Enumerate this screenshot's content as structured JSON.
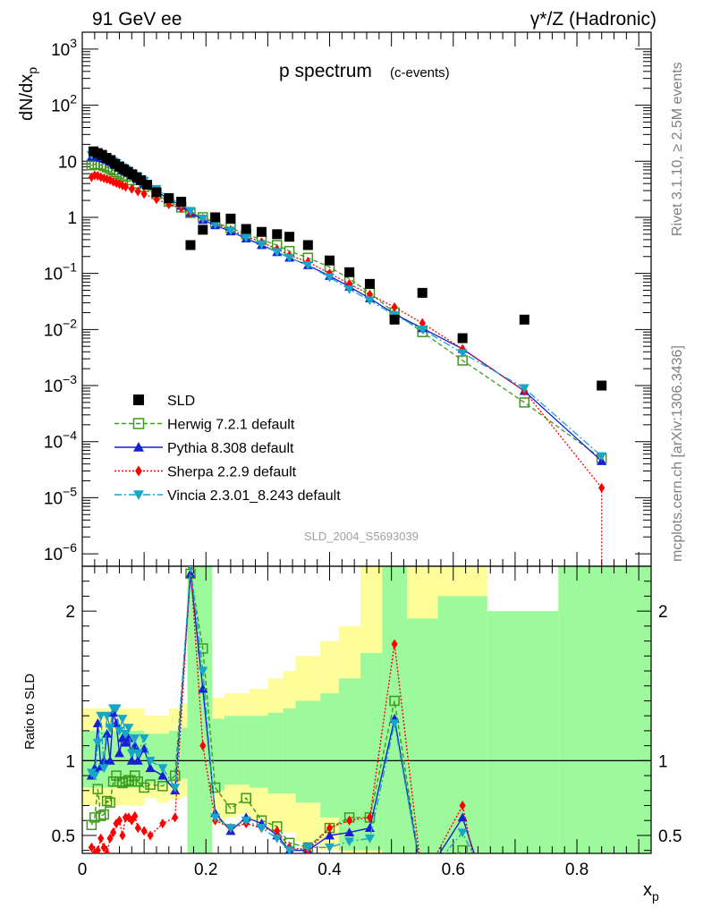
{
  "header": {
    "left": "91 GeV ee",
    "right": "γ*/Z (Hadronic)"
  },
  "side": {
    "rivet": "Rivet 3.1.10, ≥ 2.5M events",
    "mcplots": "mcplots.cern.ch [arXiv:1306.3436]"
  },
  "chart_data": [
    {
      "type": "scatter",
      "title": "p spectrum",
      "subtitle": "(c-events)",
      "watermark": "SLD_2004_S5693039",
      "ylabel": "dN/dx_p",
      "yscale": "log",
      "ylim": [
        6e-07,
        2000
      ],
      "xlim": [
        0,
        0.92
      ],
      "y_ticks": [
        "10^-6",
        "10^-5",
        "10^-4",
        "10^-3",
        "10^-2",
        "10^-1",
        "1",
        "10",
        "10^2",
        "10^3"
      ],
      "legend_position": "bottom-left",
      "series": [
        {
          "name": "SLD",
          "color": "#000000",
          "marker": "square",
          "line": "none",
          "x": [
            0.018,
            0.025,
            0.032,
            0.039,
            0.046,
            0.053,
            0.06,
            0.067,
            0.074,
            0.081,
            0.088,
            0.095,
            0.105,
            0.12,
            0.14,
            0.16,
            0.175,
            0.195,
            0.215,
            0.24,
            0.265,
            0.29,
            0.315,
            0.335,
            0.365,
            0.4,
            0.432,
            0.465,
            0.505,
            0.55,
            0.615,
            0.715,
            0.84
          ],
          "y": [
            15,
            14,
            13,
            11.5,
            10.5,
            9,
            8,
            7.2,
            6.5,
            5.8,
            5.2,
            4.6,
            3.8,
            2.8,
            2.2,
            1.9,
            0.32,
            0.6,
            1.0,
            0.95,
            0.62,
            0.55,
            0.5,
            0.45,
            0.32,
            0.17,
            0.105,
            0.065,
            0.015,
            0.045,
            0.007,
            0.015,
            0.001
          ]
        },
        {
          "name": "Herwig 7.2.1 default",
          "color": "#3f9a1a",
          "marker": "open-square",
          "line": "dashed",
          "x": [
            0.015,
            0.02,
            0.025,
            0.03,
            0.035,
            0.04,
            0.045,
            0.05,
            0.055,
            0.06,
            0.065,
            0.07,
            0.08,
            0.09,
            0.1,
            0.12,
            0.14,
            0.16,
            0.175,
            0.195,
            0.215,
            0.24,
            0.265,
            0.29,
            0.315,
            0.335,
            0.365,
            0.4,
            0.432,
            0.465,
            0.505,
            0.55,
            0.615,
            0.715,
            0.84
          ],
          "y": [
            8.5,
            8.8,
            8.9,
            8.6,
            8.2,
            7.8,
            7.3,
            6.9,
            6.4,
            6.0,
            5.6,
            5.3,
            4.6,
            4.0,
            3.5,
            2.6,
            1.9,
            1.5,
            1.2,
            1.0,
            0.8,
            0.65,
            0.5,
            0.4,
            0.32,
            0.25,
            0.19,
            0.13,
            0.08,
            0.045,
            0.02,
            0.009,
            0.0028,
            0.0005,
            5e-05
          ]
        },
        {
          "name": "Pythia 8.308 default",
          "color": "#1720d8",
          "marker": "triangle-up",
          "line": "solid",
          "x": [
            0.015,
            0.02,
            0.025,
            0.03,
            0.035,
            0.04,
            0.045,
            0.05,
            0.055,
            0.06,
            0.065,
            0.07,
            0.08,
            0.09,
            0.1,
            0.12,
            0.14,
            0.16,
            0.175,
            0.195,
            0.215,
            0.24,
            0.265,
            0.29,
            0.315,
            0.335,
            0.365,
            0.4,
            0.432,
            0.465,
            0.505,
            0.55,
            0.615,
            0.715,
            0.84
          ],
          "y": [
            12,
            12.5,
            12,
            11.5,
            11,
            10.5,
            9.8,
            9.2,
            8.5,
            7.8,
            7.1,
            6.5,
            5.6,
            4.8,
            4.0,
            2.9,
            2.1,
            1.6,
            1.2,
            0.9,
            0.72,
            0.56,
            0.42,
            0.32,
            0.24,
            0.19,
            0.14,
            0.09,
            0.058,
            0.036,
            0.019,
            0.0105,
            0.0045,
            0.0008,
            4.5e-05
          ]
        },
        {
          "name": "Sherpa 2.2.9 default",
          "color": "#ff0000",
          "marker": "diamond",
          "line": "dotted",
          "x": [
            0.015,
            0.02,
            0.025,
            0.03,
            0.035,
            0.04,
            0.045,
            0.05,
            0.055,
            0.06,
            0.065,
            0.07,
            0.08,
            0.09,
            0.1,
            0.12,
            0.14,
            0.16,
            0.175,
            0.195,
            0.215,
            0.24,
            0.265,
            0.29,
            0.315,
            0.335,
            0.365,
            0.4,
            0.432,
            0.465,
            0.505,
            0.55,
            0.615,
            0.715,
            0.84
          ],
          "y": [
            5.2,
            5.6,
            5.5,
            5.2,
            5.0,
            4.8,
            4.6,
            4.3,
            4.1,
            3.9,
            3.7,
            3.5,
            3.2,
            2.9,
            2.6,
            2.1,
            1.7,
            1.45,
            1.2,
            0.95,
            0.78,
            0.6,
            0.46,
            0.36,
            0.27,
            0.21,
            0.16,
            0.1,
            0.065,
            0.042,
            0.025,
            0.013,
            0.0045,
            0.0008,
            1.5e-05
          ]
        },
        {
          "name": "Vincia 2.3.01_8.243 default",
          "color": "#17a6c8",
          "marker": "triangle-down",
          "line": "dashdot",
          "x": [
            0.015,
            0.02,
            0.025,
            0.03,
            0.035,
            0.04,
            0.045,
            0.05,
            0.055,
            0.06,
            0.065,
            0.07,
            0.08,
            0.09,
            0.1,
            0.12,
            0.14,
            0.16,
            0.175,
            0.195,
            0.215,
            0.24,
            0.265,
            0.29,
            0.315,
            0.335,
            0.365,
            0.4,
            0.432,
            0.465,
            0.505,
            0.55,
            0.615,
            0.715,
            0.84
          ],
          "y": [
            13,
            13.5,
            13,
            12.5,
            12,
            11.5,
            10.8,
            10,
            9.3,
            8.5,
            7.8,
            7.2,
            6.2,
            5.3,
            4.5,
            3.2,
            2.3,
            1.7,
            1.3,
            0.95,
            0.75,
            0.58,
            0.43,
            0.33,
            0.24,
            0.19,
            0.14,
            0.085,
            0.052,
            0.033,
            0.018,
            0.01,
            0.0038,
            0.0009,
            5.5e-05
          ]
        }
      ]
    },
    {
      "type": "line",
      "ylabel": "Ratio to SLD",
      "xlabel": "x_p",
      "ylim": [
        0.38,
        2.3
      ],
      "xlim": [
        0,
        0.92
      ],
      "y_ticks_left": [
        "0.5",
        "1",
        "2"
      ],
      "y_ticks_right": [
        "0.5",
        "1",
        "2"
      ],
      "x_ticks": [
        "0",
        "0.2",
        "0.4",
        "0.6",
        "0.8"
      ],
      "bands": {
        "edges": [
          0.0,
          0.1,
          0.12,
          0.14,
          0.16,
          0.17,
          0.19,
          0.21,
          0.23,
          0.25,
          0.27,
          0.3,
          0.325,
          0.345,
          0.385,
          0.415,
          0.45,
          0.485,
          0.525,
          0.575,
          0.655,
          0.77,
          0.92
        ],
        "stat_lo": [
          0.82,
          0.85,
          0.84,
          0.86,
          0.88,
          0.38,
          0.38,
          0.8,
          0.84,
          0.84,
          0.82,
          0.78,
          0.78,
          0.72,
          0.62,
          0.4,
          0.4,
          0.38,
          0.38,
          0.38,
          0.38,
          0.38
        ],
        "stat_hi": [
          1.2,
          1.18,
          1.18,
          1.2,
          1.22,
          2.3,
          2.3,
          1.28,
          1.3,
          1.3,
          1.3,
          1.32,
          1.35,
          1.4,
          1.45,
          1.55,
          1.72,
          2.3,
          1.95,
          2.1,
          2.0,
          2.3
        ],
        "total_lo": [
          0.7,
          0.75,
          0.72,
          0.74,
          0.76,
          0.38,
          0.38,
          0.58,
          0.62,
          0.64,
          0.6,
          0.55,
          0.52,
          0.46,
          0.4,
          0.38,
          0.38,
          0.38,
          0.38,
          0.38,
          0.38,
          0.38
        ],
        "total_hi": [
          1.35,
          1.3,
          1.3,
          1.35,
          1.38,
          2.3,
          2.3,
          1.42,
          1.45,
          1.45,
          1.48,
          1.55,
          1.6,
          1.7,
          1.8,
          1.9,
          2.3,
          2.3,
          2.3,
          2.3,
          1.8,
          2.3
        ],
        "stat_color": "#9cfa9c",
        "total_color": "#fdfd9a"
      },
      "series": [
        {
          "name": "Herwig 7.2.1 default",
          "color": "#3f9a1a",
          "x": [
            0.015,
            0.02,
            0.025,
            0.03,
            0.035,
            0.04,
            0.045,
            0.05,
            0.055,
            0.06,
            0.065,
            0.07,
            0.075,
            0.08,
            0.085,
            0.09,
            0.1,
            0.11,
            0.13,
            0.15,
            0.175,
            0.195,
            0.215,
            0.24,
            0.265,
            0.29,
            0.315,
            0.335,
            0.365,
            0.4,
            0.432,
            0.465,
            0.505,
            0.55,
            0.615
          ],
          "y": [
            0.57,
            0.62,
            0.81,
            0.63,
            0.64,
            0.73,
            0.72,
            0.86,
            0.9,
            0.86,
            0.85,
            0.86,
            0.87,
            0.86,
            0.9,
            0.86,
            0.82,
            0.84,
            0.83,
            0.9,
            2.25,
            1.75,
            0.82,
            0.68,
            0.75,
            0.6,
            0.56,
            0.45,
            0.42,
            0.55,
            0.62,
            0.62,
            1.4,
            0.2,
            0.4
          ]
        },
        {
          "name": "Pythia 8.308 default",
          "color": "#1720d8",
          "x": [
            0.015,
            0.02,
            0.025,
            0.03,
            0.035,
            0.04,
            0.045,
            0.05,
            0.055,
            0.06,
            0.065,
            0.07,
            0.075,
            0.08,
            0.085,
            0.09,
            0.1,
            0.11,
            0.13,
            0.15,
            0.175,
            0.195,
            0.215,
            0.24,
            0.265,
            0.29,
            0.315,
            0.335,
            0.365,
            0.4,
            0.432,
            0.465,
            0.505,
            0.55,
            0.615,
            0.64
          ],
          "y": [
            0.9,
            0.95,
            1.25,
            0.96,
            1.0,
            1.18,
            1.0,
            1.32,
            1.25,
            1.05,
            1.15,
            1.12,
            1.15,
            1.0,
            1.1,
            1.0,
            1.08,
            0.95,
            0.9,
            0.8,
            2.25,
            1.48,
            0.65,
            0.53,
            0.62,
            0.58,
            0.5,
            0.4,
            0.4,
            0.5,
            0.52,
            0.55,
            1.28,
            0.2,
            0.62,
            0.3
          ]
        },
        {
          "name": "Sherpa 2.2.9 default",
          "color": "#ff0000",
          "x": [
            0.015,
            0.02,
            0.025,
            0.03,
            0.035,
            0.04,
            0.045,
            0.05,
            0.055,
            0.06,
            0.065,
            0.07,
            0.075,
            0.08,
            0.085,
            0.09,
            0.1,
            0.11,
            0.13,
            0.15,
            0.175,
            0.195,
            0.215,
            0.24,
            0.265,
            0.29,
            0.315,
            0.335,
            0.365,
            0.4,
            0.432,
            0.465,
            0.505,
            0.55,
            0.615,
            0.64
          ],
          "y": [
            0.42,
            0.38,
            0.4,
            0.48,
            0.42,
            0.38,
            0.48,
            0.52,
            0.58,
            0.6,
            0.5,
            0.62,
            0.62,
            0.6,
            0.63,
            0.55,
            0.53,
            0.5,
            0.58,
            0.62,
            2.3,
            1.1,
            0.6,
            0.55,
            0.58,
            0.55,
            0.53,
            0.42,
            0.4,
            0.55,
            0.6,
            0.62,
            1.78,
            0.2,
            0.7,
            0.2
          ]
        },
        {
          "name": "Vincia 2.3.01_8.243 default",
          "color": "#17a6c8",
          "x": [
            0.015,
            0.02,
            0.025,
            0.03,
            0.035,
            0.04,
            0.045,
            0.05,
            0.055,
            0.06,
            0.065,
            0.07,
            0.075,
            0.08,
            0.085,
            0.09,
            0.1,
            0.11,
            0.13,
            0.15,
            0.175,
            0.195,
            0.215,
            0.24,
            0.265,
            0.29,
            0.315,
            0.335,
            0.365,
            0.4,
            0.432,
            0.465,
            0.505,
            0.55,
            0.615,
            0.64
          ],
          "y": [
            0.92,
            0.9,
            1.12,
            1.3,
            0.95,
            1.3,
            1.22,
            1.35,
            1.35,
            1.2,
            1.28,
            1.18,
            1.22,
            1.05,
            1.15,
            1.05,
            1.15,
            1.0,
            0.95,
            0.82,
            2.3,
            1.6,
            0.62,
            0.55,
            0.6,
            0.55,
            0.48,
            0.4,
            0.42,
            0.42,
            0.46,
            0.48,
            1.25,
            0.2,
            0.52,
            0.3
          ]
        }
      ]
    }
  ]
}
